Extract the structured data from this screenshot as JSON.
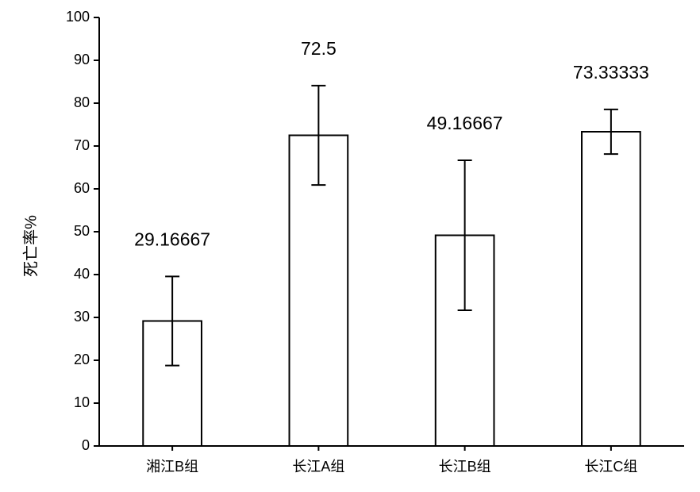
{
  "chart_data": {
    "type": "bar",
    "y_label": "死亡率%",
    "categories": [
      "湘江B组",
      "长江A组",
      "长江B组",
      "长江C组"
    ],
    "values": [
      29.16667,
      72.5,
      49.16667,
      73.33333
    ],
    "errors": [
      10.4,
      11.6,
      17.5,
      5.2
    ],
    "color": "#ffffff",
    "edge_color": "#000000",
    "ylim": [
      0,
      100
    ],
    "yticks": [
      0,
      10,
      20,
      30,
      40,
      50,
      60,
      70,
      80,
      90,
      100
    ],
    "grid": false
  }
}
